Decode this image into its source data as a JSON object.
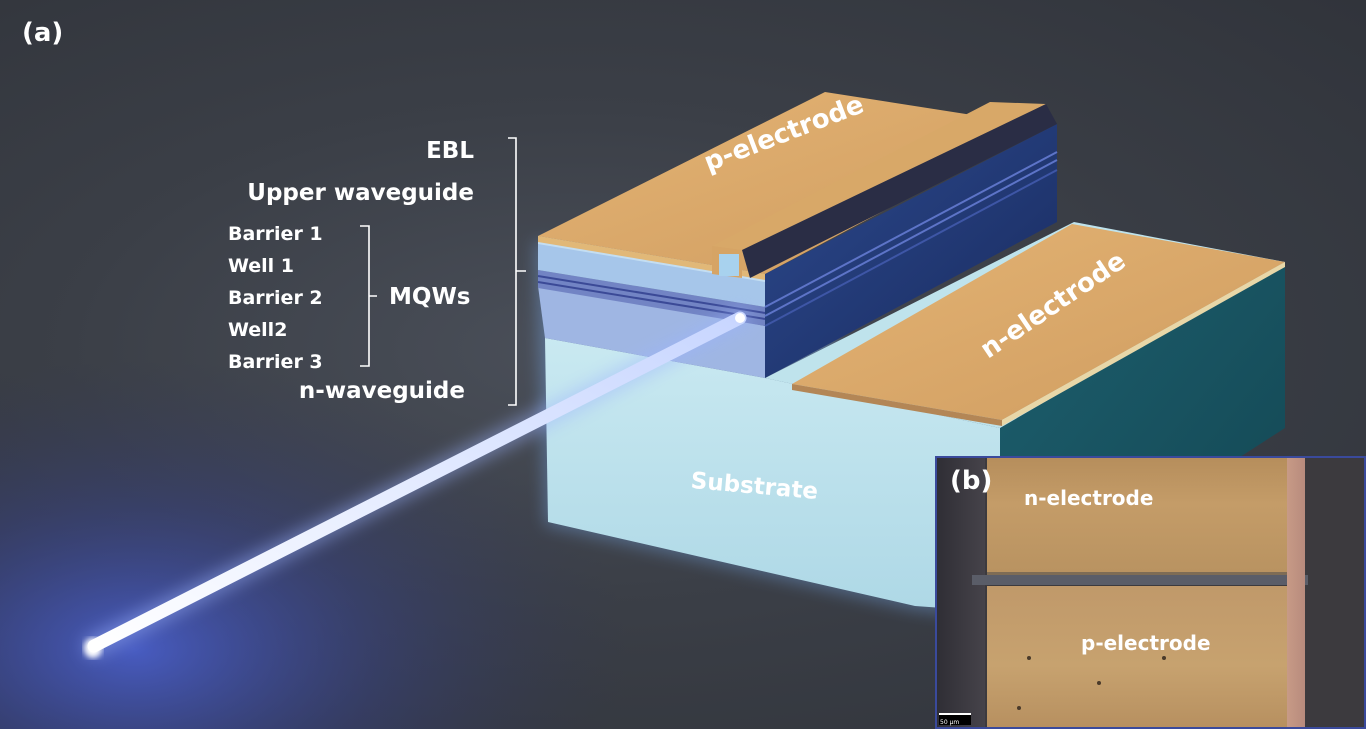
{
  "panel_a_label": "(a)",
  "panel_b_label": "(b)",
  "layers": {
    "ebl": "EBL",
    "upper_waveguide": "Upper waveguide",
    "barrier_1": "Barrier 1",
    "well_1": "Well 1",
    "barrier_2": "Barrier 2",
    "well_2": "Well2",
    "barrier_3": "Barrier 3",
    "mqws": "MQWs",
    "n_waveguide": "n-waveguide"
  },
  "surfaces": {
    "p_electrode": "p-electrode",
    "n_electrode": "n-electrode",
    "substrate": "Substrate"
  },
  "inset": {
    "n_electrode": "n-electrode",
    "p_electrode": "p-electrode",
    "scale": "50 μm"
  },
  "colors": {
    "electrode": "#d9a86a",
    "substrate": "#c3e3ec",
    "waveguide": "#a9cde6",
    "mqw_band": "#7d8fc9",
    "ridge_side": "#26407f",
    "laser_beam": "#e8ecff"
  }
}
